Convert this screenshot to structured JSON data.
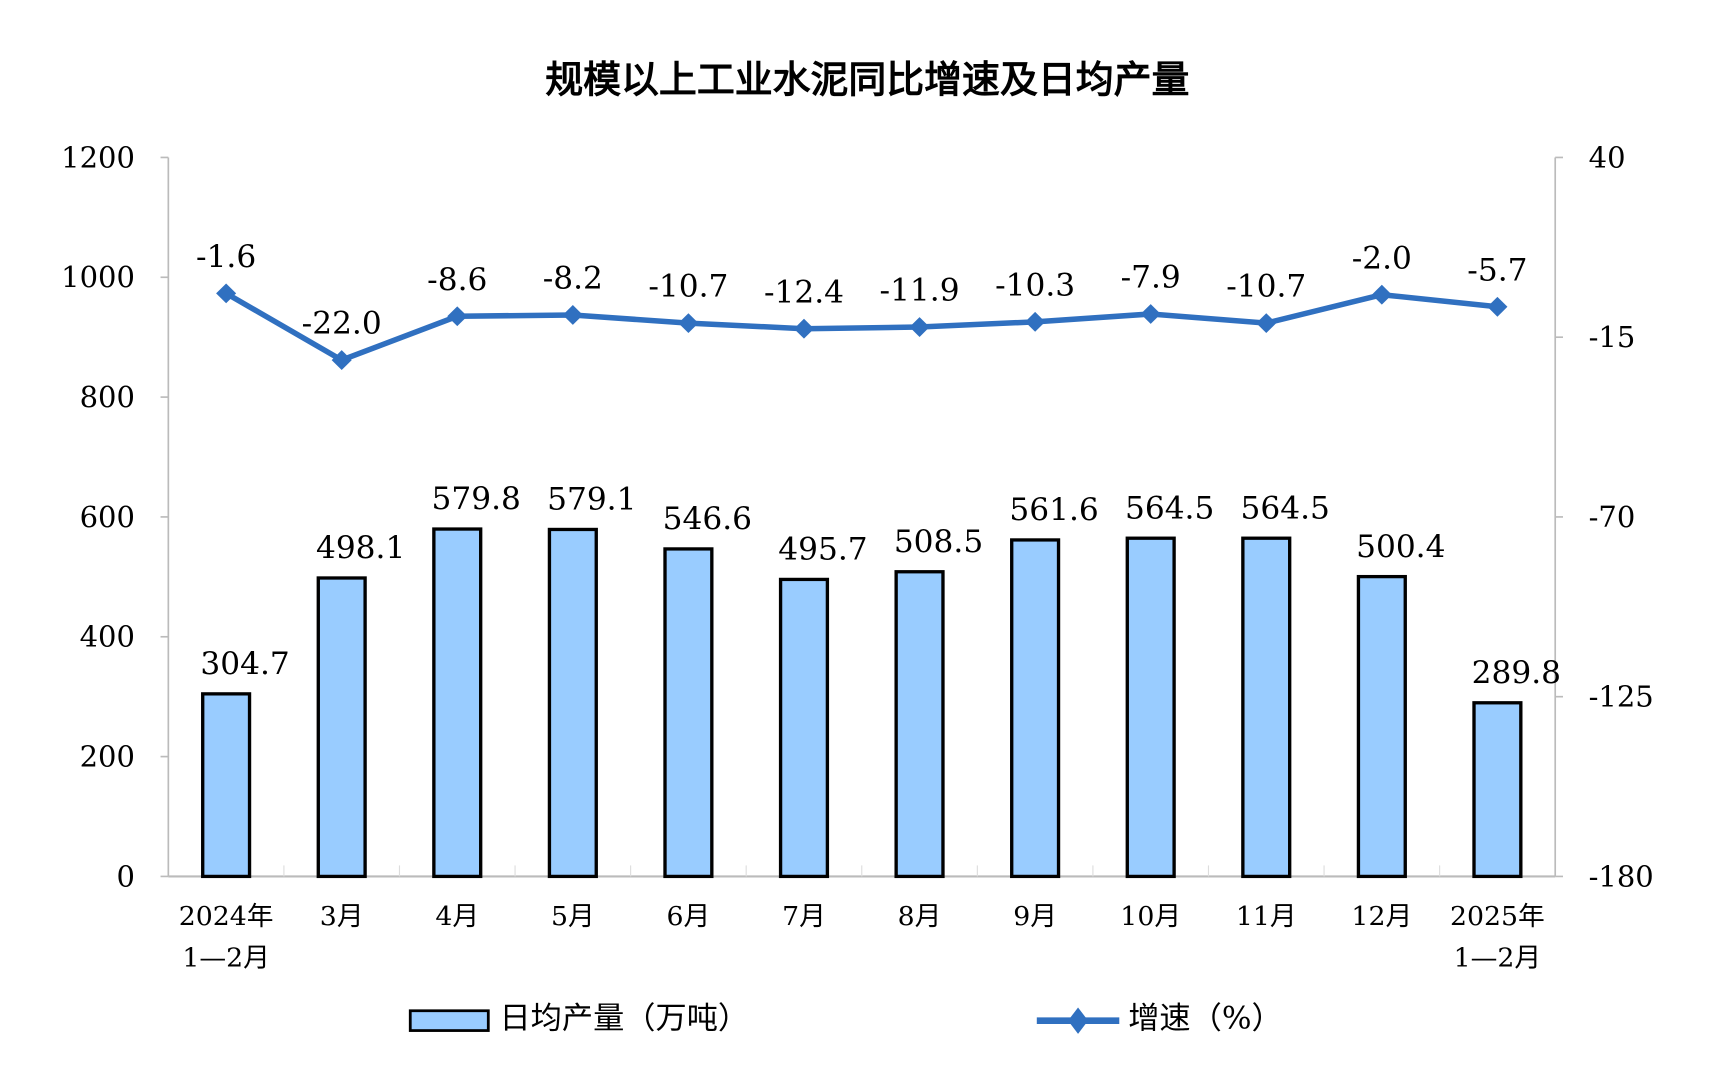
{
  "chart_data": {
    "type": "bar+line",
    "title": "规模以上工业水泥同比增速及日均产量",
    "categories": [
      [
        "2024年",
        "1—2月"
      ],
      [
        "3月"
      ],
      [
        "4月"
      ],
      [
        "5月"
      ],
      [
        "6月"
      ],
      [
        "7月"
      ],
      [
        "8月"
      ],
      [
        "9月"
      ],
      [
        "10月"
      ],
      [
        "11月"
      ],
      [
        "12月"
      ],
      [
        "2025年",
        "1—2月"
      ]
    ],
    "series": [
      {
        "name": "日均产量（万吨）",
        "type": "bar",
        "axis": "left",
        "values": [
          304.7,
          498.1,
          579.8,
          579.1,
          546.6,
          495.7,
          508.5,
          561.6,
          564.5,
          564.5,
          500.4,
          289.8
        ]
      },
      {
        "name": "增速（%）",
        "type": "line",
        "axis": "right",
        "values": [
          -1.6,
          -22.0,
          -8.6,
          -8.2,
          -10.7,
          -12.4,
          -11.9,
          -10.3,
          -7.9,
          -10.7,
          -2.0,
          -5.7
        ]
      }
    ],
    "left_axis": {
      "ylim": [
        0,
        1200
      ],
      "ticks": [
        "0",
        "200",
        "400",
        "600",
        "800",
        "1000",
        "1200"
      ]
    },
    "right_axis": {
      "ylim": [
        -180,
        40
      ],
      "ticks": [
        "-180",
        "-125",
        "-70",
        "-15",
        "40"
      ]
    },
    "legend_position": "bottom",
    "grid": false,
    "colors": {
      "bar_fill": "#99CCFF",
      "bar_stroke": "#000000",
      "line": "#3070C0"
    }
  }
}
